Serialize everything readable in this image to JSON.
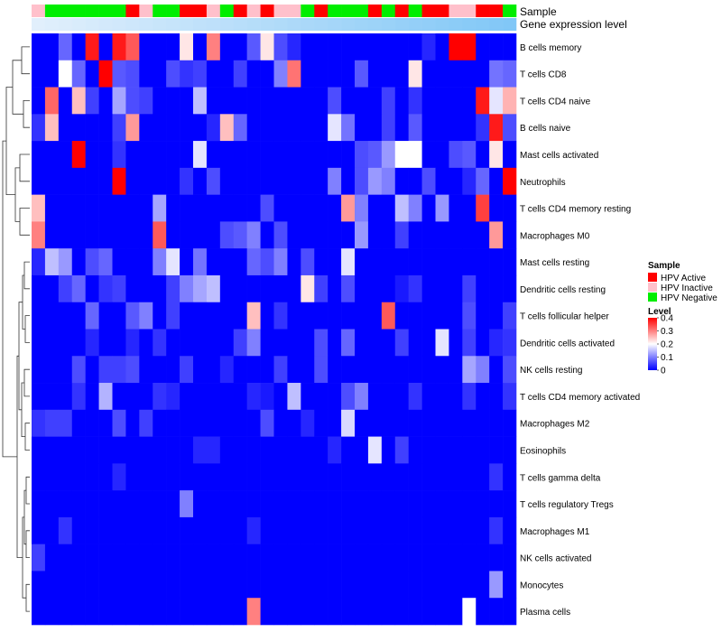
{
  "chart_data": {
    "type": "heatmap",
    "title": "",
    "xlabel": "",
    "ylabel": "",
    "annotation_tracks": [
      "Sample",
      "Gene expression level"
    ],
    "rows": [
      "B cells memory",
      "T cells CD8",
      "T cells CD4 naive",
      "B cells naive",
      "Mast cells activated",
      "Neutrophils",
      "T cells CD4 memory resting",
      "Macrophages M0",
      "Mast cells resting",
      "Dendritic cells resting",
      "T cells follicular helper",
      "Dendritic cells activated",
      "NK cells resting",
      "T cells CD4 memory activated",
      "Macrophages M2",
      "Eosinophils",
      "T cells gamma delta",
      "T cells regulatory  Tregs",
      "Macrophages M1",
      "NK cells activated",
      "Monocytes",
      "Plasma cells"
    ],
    "sample_groups": [
      "HPV Inactive",
      "HPV Negative",
      "HPV Negative",
      "HPV Negative",
      "HPV Negative",
      "HPV Negative",
      "HPV Negative",
      "HPV Active",
      "HPV Inactive",
      "HPV Negative",
      "HPV Negative",
      "HPV Active",
      "HPV Active",
      "HPV Inactive",
      "HPV Negative",
      "HPV Active",
      "HPV Inactive",
      "HPV Active",
      "HPV Inactive",
      "HPV Inactive",
      "HPV Negative",
      "HPV Active",
      "HPV Negative",
      "HPV Negative",
      "HPV Negative",
      "HPV Active",
      "HPV Negative",
      "HPV Active",
      "HPV Negative",
      "HPV Active",
      "HPV Active",
      "HPV Inactive",
      "HPV Inactive",
      "HPV Active",
      "HPV Active",
      "HPV Negative"
    ],
    "gene_expression_level": [
      0.05,
      0.07,
      0.09,
      0.11,
      0.13,
      0.15,
      0.17,
      0.19,
      0.21,
      0.23,
      0.25,
      0.27,
      0.29,
      0.31,
      0.33,
      0.35,
      0.37,
      0.39,
      0.41,
      0.43,
      0.45,
      0.47,
      0.49,
      0.51,
      0.53,
      0.55,
      0.57,
      0.59,
      0.61,
      0.63,
      0.65,
      0.67,
      0.69,
      0.71,
      0.73,
      0.75
    ],
    "values": [
      [
        0.0,
        0.0,
        0.08,
        0.0,
        0.38,
        0.0,
        0.38,
        0.33,
        0.0,
        0.0,
        0.0,
        0.22,
        0.0,
        0.3,
        0.0,
        0.0,
        0.07,
        0.22,
        0.06,
        0.03,
        0.0,
        0.0,
        0.0,
        0.0,
        0.0,
        0.0,
        0.0,
        0.0,
        0.0,
        0.03,
        0.0,
        0.4,
        0.4,
        0.0,
        0.0,
        0.0
      ],
      [
        0.0,
        0.0,
        0.2,
        0.08,
        0.0,
        0.4,
        0.07,
        0.06,
        0.0,
        0.0,
        0.06,
        0.04,
        0.05,
        0.0,
        0.0,
        0.05,
        0.0,
        0.0,
        0.1,
        0.31,
        0.0,
        0.0,
        0.0,
        0.0,
        0.07,
        0.0,
        0.0,
        0.0,
        0.22,
        0.0,
        0.0,
        0.0,
        0.0,
        0.0,
        0.09,
        0.08
      ],
      [
        0.0,
        0.32,
        0.0,
        0.25,
        0.05,
        0.0,
        0.13,
        0.06,
        0.05,
        0.0,
        0.0,
        0.0,
        0.15,
        0.0,
        0.0,
        0.0,
        0.0,
        0.0,
        0.0,
        0.0,
        0.0,
        0.0,
        0.06,
        0.0,
        0.0,
        0.0,
        0.05,
        0.0,
        0.04,
        0.0,
        0.0,
        0.0,
        0.0,
        0.38,
        0.18,
        0.26
      ],
      [
        0.04,
        0.25,
        0.0,
        0.0,
        0.0,
        0.0,
        0.05,
        0.28,
        0.0,
        0.0,
        0.0,
        0.0,
        0.0,
        0.03,
        0.25,
        0.08,
        0.0,
        0.0,
        0.0,
        0.0,
        0.0,
        0.0,
        0.18,
        0.09,
        0.0,
        0.0,
        0.05,
        0.0,
        0.07,
        0.0,
        0.0,
        0.0,
        0.0,
        0.04,
        0.38,
        0.06
      ],
      [
        0.0,
        0.0,
        0.0,
        0.4,
        0.0,
        0.0,
        0.04,
        0.0,
        0.0,
        0.0,
        0.0,
        0.0,
        0.18,
        0.0,
        0.0,
        0.0,
        0.0,
        0.0,
        0.0,
        0.0,
        0.0,
        0.0,
        0.0,
        0.0,
        0.06,
        0.07,
        0.12,
        0.2,
        0.2,
        0.0,
        0.0,
        0.06,
        0.07,
        0.0,
        0.22,
        0.0
      ],
      [
        0.0,
        0.0,
        0.0,
        0.0,
        0.0,
        0.0,
        0.4,
        0.0,
        0.0,
        0.0,
        0.0,
        0.04,
        0.0,
        0.06,
        0.0,
        0.0,
        0.0,
        0.0,
        0.0,
        0.0,
        0.0,
        0.0,
        0.1,
        0.0,
        0.06,
        0.12,
        0.1,
        0.0,
        0.0,
        0.06,
        0.0,
        0.0,
        0.03,
        0.08,
        0.0,
        0.4
      ],
      [
        0.25,
        0.0,
        0.0,
        0.0,
        0.0,
        0.0,
        0.0,
        0.0,
        0.0,
        0.13,
        0.0,
        0.0,
        0.0,
        0.0,
        0.0,
        0.0,
        0.0,
        0.06,
        0.0,
        0.0,
        0.0,
        0.0,
        0.0,
        0.28,
        0.1,
        0.0,
        0.0,
        0.15,
        0.1,
        0.0,
        0.12,
        0.0,
        0.0,
        0.35,
        0.0,
        0.0
      ],
      [
        0.3,
        0.0,
        0.0,
        0.0,
        0.0,
        0.0,
        0.0,
        0.0,
        0.0,
        0.33,
        0.0,
        0.0,
        0.0,
        0.0,
        0.06,
        0.07,
        0.1,
        0.0,
        0.06,
        0.0,
        0.0,
        0.0,
        0.0,
        0.0,
        0.12,
        0.0,
        0.0,
        0.05,
        0.0,
        0.0,
        0.0,
        0.0,
        0.0,
        0.0,
        0.28,
        0.0
      ],
      [
        0.03,
        0.15,
        0.12,
        0.0,
        0.06,
        0.08,
        0.0,
        0.0,
        0.0,
        0.1,
        0.18,
        0.0,
        0.09,
        0.0,
        0.0,
        0.0,
        0.08,
        0.06,
        0.1,
        0.0,
        0.06,
        0.0,
        0.0,
        0.18,
        0.0,
        0.0,
        0.0,
        0.0,
        0.0,
        0.0,
        0.0,
        0.0,
        0.0,
        0.0,
        0.0,
        0.0
      ],
      [
        0.0,
        0.0,
        0.05,
        0.08,
        0.0,
        0.04,
        0.05,
        0.0,
        0.0,
        0.0,
        0.05,
        0.1,
        0.13,
        0.15,
        0.0,
        0.0,
        0.0,
        0.0,
        0.0,
        0.0,
        0.22,
        0.05,
        0.0,
        0.06,
        0.0,
        0.0,
        0.0,
        0.02,
        0.04,
        0.0,
        0.0,
        0.0,
        0.05,
        0.0,
        0.0,
        0.0
      ],
      [
        0.0,
        0.0,
        0.0,
        0.0,
        0.08,
        0.0,
        0.0,
        0.07,
        0.1,
        0.0,
        0.05,
        0.0,
        0.0,
        0.0,
        0.0,
        0.0,
        0.25,
        0.0,
        0.04,
        0.0,
        0.0,
        0.0,
        0.0,
        0.0,
        0.0,
        0.0,
        0.33,
        0.0,
        0.0,
        0.0,
        0.0,
        0.0,
        0.06,
        0.0,
        0.0,
        0.05
      ],
      [
        0.0,
        0.0,
        0.0,
        0.0,
        0.03,
        0.0,
        0.0,
        0.03,
        0.0,
        0.04,
        0.0,
        0.0,
        0.0,
        0.0,
        0.0,
        0.05,
        0.1,
        0.0,
        0.0,
        0.0,
        0.0,
        0.06,
        0.0,
        0.08,
        0.0,
        0.0,
        0.0,
        0.05,
        0.0,
        0.0,
        0.18,
        0.0,
        0.05,
        0.0,
        0.03,
        0.04
      ],
      [
        0.0,
        0.0,
        0.0,
        0.06,
        0.0,
        0.05,
        0.05,
        0.06,
        0.0,
        0.0,
        0.0,
        0.05,
        0.0,
        0.0,
        0.03,
        0.0,
        0.0,
        0.0,
        0.05,
        0.0,
        0.0,
        0.06,
        0.0,
        0.0,
        0.0,
        0.0,
        0.0,
        0.0,
        0.0,
        0.0,
        0.0,
        0.0,
        0.13,
        0.1,
        0.0,
        0.06
      ],
      [
        0.0,
        0.0,
        0.0,
        0.04,
        0.0,
        0.14,
        0.0,
        0.0,
        0.0,
        0.04,
        0.03,
        0.0,
        0.0,
        0.0,
        0.0,
        0.0,
        0.03,
        0.02,
        0.0,
        0.15,
        0.0,
        0.0,
        0.0,
        0.06,
        0.1,
        0.0,
        0.0,
        0.0,
        0.04,
        0.0,
        0.0,
        0.0,
        0.04,
        0.0,
        0.0,
        0.04
      ],
      [
        0.04,
        0.05,
        0.05,
        0.0,
        0.0,
        0.0,
        0.06,
        0.0,
        0.05,
        0.0,
        0.0,
        0.0,
        0.0,
        0.0,
        0.0,
        0.0,
        0.0,
        0.06,
        0.0,
        0.0,
        0.03,
        0.0,
        0.0,
        0.17,
        0.0,
        0.0,
        0.0,
        0.0,
        0.0,
        0.0,
        0.0,
        0.0,
        0.0,
        0.0,
        0.0,
        0.0
      ],
      [
        0.0,
        0.0,
        0.0,
        0.0,
        0.0,
        0.0,
        0.0,
        0.0,
        0.0,
        0.0,
        0.0,
        0.0,
        0.03,
        0.03,
        0.0,
        0.0,
        0.0,
        0.0,
        0.0,
        0.0,
        0.0,
        0.0,
        0.03,
        0.0,
        0.0,
        0.18,
        0.0,
        0.05,
        0.0,
        0.0,
        0.0,
        0.0,
        0.0,
        0.0,
        0.0,
        0.0
      ],
      [
        0.0,
        0.0,
        0.0,
        0.0,
        0.0,
        0.0,
        0.03,
        0.0,
        0.0,
        0.0,
        0.0,
        0.0,
        0.0,
        0.0,
        0.0,
        0.0,
        0.0,
        0.0,
        0.0,
        0.0,
        0.0,
        0.0,
        0.0,
        0.0,
        0.0,
        0.0,
        0.0,
        0.0,
        0.0,
        0.0,
        0.0,
        0.0,
        0.0,
        0.0,
        0.04,
        0.0
      ],
      [
        0.0,
        0.0,
        0.0,
        0.0,
        0.0,
        0.0,
        0.0,
        0.0,
        0.0,
        0.0,
        0.0,
        0.1,
        0.0,
        0.0,
        0.0,
        0.0,
        0.0,
        0.0,
        0.0,
        0.0,
        0.0,
        0.0,
        0.0,
        0.0,
        0.0,
        0.0,
        0.0,
        0.0,
        0.0,
        0.0,
        0.0,
        0.0,
        0.0,
        0.0,
        0.0,
        0.0
      ],
      [
        0.0,
        0.0,
        0.04,
        0.0,
        0.0,
        0.0,
        0.0,
        0.0,
        0.0,
        0.0,
        0.0,
        0.0,
        0.0,
        0.0,
        0.0,
        0.0,
        0.03,
        0.0,
        0.0,
        0.0,
        0.0,
        0.0,
        0.0,
        0.0,
        0.0,
        0.0,
        0.0,
        0.0,
        0.0,
        0.0,
        0.0,
        0.0,
        0.0,
        0.0,
        0.04,
        0.0
      ],
      [
        0.05,
        0.0,
        0.0,
        0.0,
        0.0,
        0.0,
        0.0,
        0.0,
        0.0,
        0.0,
        0.0,
        0.0,
        0.0,
        0.0,
        0.0,
        0.0,
        0.0,
        0.0,
        0.0,
        0.0,
        0.0,
        0.0,
        0.0,
        0.0,
        0.0,
        0.0,
        0.0,
        0.0,
        0.0,
        0.0,
        0.0,
        0.0,
        0.0,
        0.0,
        0.0,
        0.0
      ],
      [
        0.0,
        0.0,
        0.0,
        0.0,
        0.0,
        0.0,
        0.0,
        0.0,
        0.0,
        0.0,
        0.0,
        0.0,
        0.0,
        0.0,
        0.0,
        0.0,
        0.0,
        0.0,
        0.0,
        0.0,
        0.0,
        0.0,
        0.0,
        0.0,
        0.0,
        0.0,
        0.0,
        0.0,
        0.0,
        0.0,
        0.0,
        0.0,
        0.0,
        0.0,
        0.12,
        0.0
      ],
      [
        0.0,
        0.0,
        0.0,
        0.0,
        0.0,
        0.0,
        0.0,
        0.0,
        0.0,
        0.0,
        0.0,
        0.0,
        0.0,
        0.0,
        0.0,
        0.0,
        0.3,
        0.0,
        0.0,
        0.0,
        0.0,
        0.0,
        0.0,
        0.0,
        0.0,
        0.0,
        0.0,
        0.0,
        0.0,
        0.0,
        0.0,
        0.0,
        0.2,
        0.0,
        0.0,
        0.0
      ]
    ],
    "color_scale": {
      "min": 0,
      "max": 0.4,
      "low": "#0000ff",
      "mid": "#ffffff",
      "high": "#ff0000"
    },
    "legend_placement": "right",
    "legend_sample": {
      "title": "Sample",
      "entries": [
        {
          "name": "HPV Active",
          "color": "#ff0000"
        },
        {
          "name": "HPV Inactive",
          "color": "#ffc0cb"
        },
        {
          "name": "HPV Negative",
          "color": "#00ee00"
        }
      ]
    },
    "legend_level": {
      "title": "Level",
      "ticks": [
        {
          "v": 0.4,
          "label": "0.4"
        },
        {
          "v": 0.3,
          "label": "0.3"
        },
        {
          "v": 0.2,
          "label": "0.2"
        },
        {
          "v": 0.1,
          "label": "0.1"
        },
        {
          "v": 0,
          "label": "0"
        }
      ]
    }
  }
}
